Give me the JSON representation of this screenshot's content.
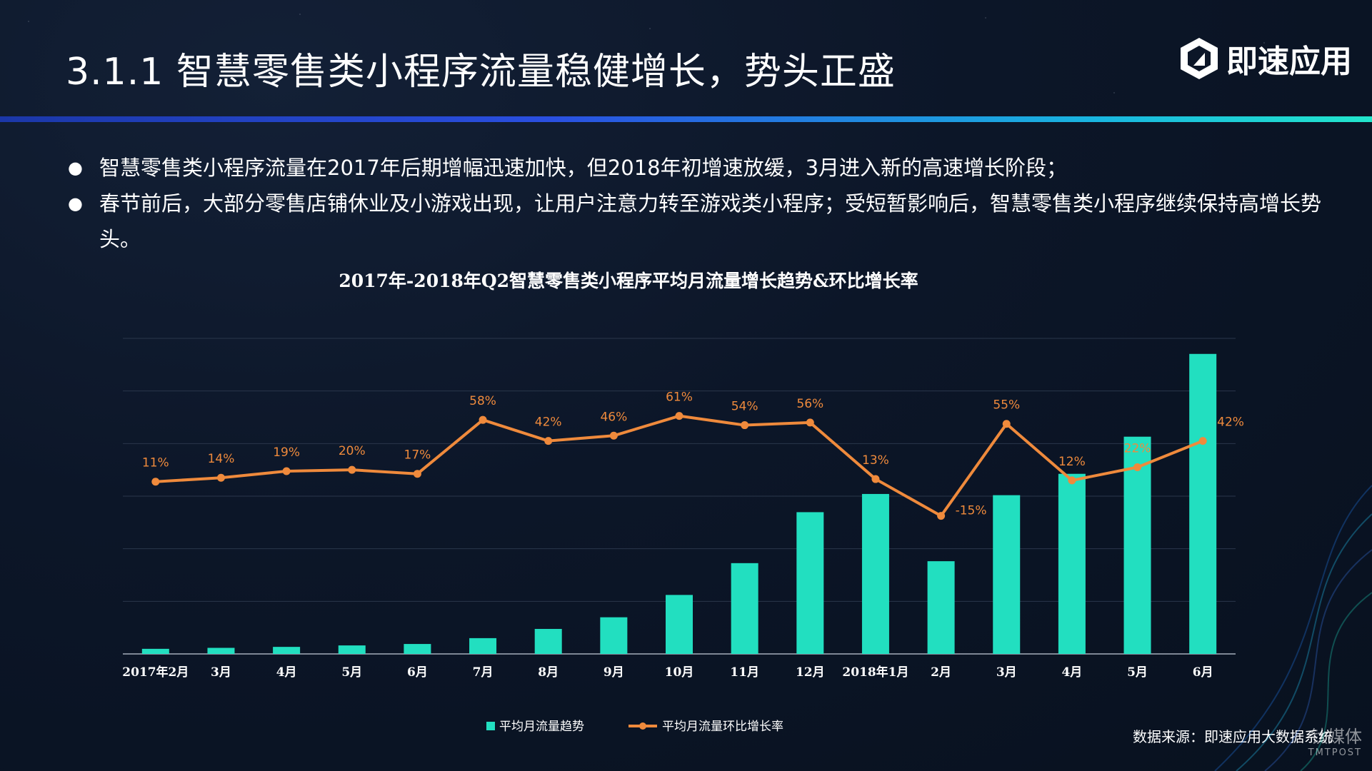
{
  "header": {
    "title": "3.1.1  智慧零售类小程序流量稳健增长，势头正盛",
    "logo_text": "即速应用"
  },
  "bullets": [
    "智慧零售类小程序流量在2017年后期增幅迅速加快，但2018年初增速放缓，3月进入新的高速增长阶段；",
    "春节前后，大部分零售店铺休业及小游戏出现，让用户注意力转至游戏类小程序；受短暂影响后，智慧零售类小程序继续保持高增长势头。"
  ],
  "footer": {
    "source": "数据来源：即速应用大数据系统",
    "watermark_cn": "钛媒体",
    "watermark_en": "TMTPOST"
  },
  "colors": {
    "bar": "#22dfc0",
    "line": "#ef8a3c",
    "label": "#ef8a3c"
  },
  "chart_data": {
    "type": "bar",
    "title": "2017年-2018年Q2智慧零售类小程序平均月流量增长趋势&环比增长率",
    "categories": [
      "2017年2月",
      "3月",
      "4月",
      "5月",
      "6月",
      "7月",
      "8月",
      "9月",
      "10月",
      "11月",
      "12月",
      "2018年1月",
      "2月",
      "3月",
      "4月",
      "5月",
      "6月"
    ],
    "series": [
      {
        "name": "平均月流量趋势",
        "type": "bar",
        "axis": "left",
        "values": [
          2.1,
          2.5,
          2.9,
          3.5,
          4.1,
          6.5,
          10.3,
          15.1,
          24.3,
          37.4,
          58.4,
          65.9,
          38.2,
          65.4,
          74.2,
          89.5,
          123.6
        ]
      },
      {
        "name": "平均月流量环比增长率",
        "type": "line",
        "axis": "right",
        "unit": "%",
        "values": [
          11,
          14,
          19,
          20,
          17,
          58,
          42,
          46,
          61,
          54,
          56,
          13,
          -15,
          55,
          12,
          22,
          42
        ]
      }
    ],
    "legend": "bottom",
    "grid": true
  }
}
